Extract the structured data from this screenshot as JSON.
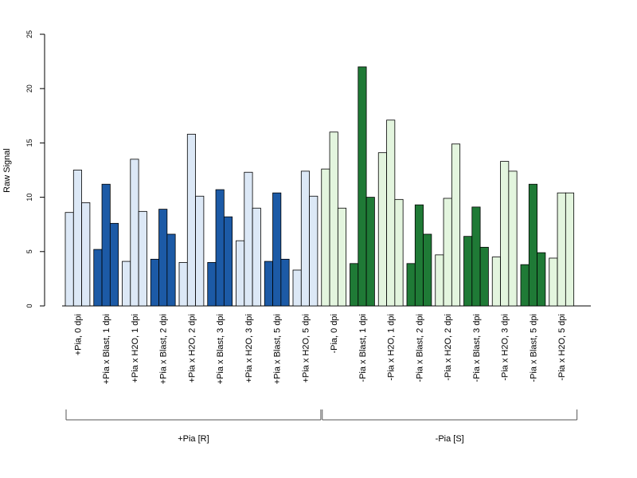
{
  "chart_data": {
    "type": "bar",
    "ylabel": "Raw Signal",
    "xlabel": "",
    "ylim": [
      0,
      25
    ],
    "yticks": [
      0,
      5,
      10,
      15,
      20,
      25
    ],
    "grid": false,
    "categories": [
      "+Pia, 0 dpi",
      "+Pia x Blast, 1 dpi",
      "+Pia x H2O, 1 dpi",
      "+Pia x Blast, 2 dpi",
      "+Pia x H2O, 2 dpi",
      "+Pia x Blast, 3 dpi",
      "+Pia x H2O, 3 dpi",
      "+Pia x Blast, 5 dpi",
      "+Pia x H2O, 5 dpi",
      "-Pia, 0 dpi",
      "-Pia x Blast, 1 dpi",
      "-Pia x H2O, 1 dpi",
      "-Pia x Blast, 2 dpi",
      "-Pia x H2O, 2 dpi",
      "-Pia x Blast, 3 dpi",
      "-Pia x H2O, 3 dpi",
      "-Pia x Blast, 5 dpi",
      "-Pia x H2O, 5 dpi"
    ],
    "replicates": [
      [
        8.6,
        12.5,
        9.5
      ],
      [
        5.2,
        11.2,
        7.6
      ],
      [
        4.1,
        13.5,
        8.7
      ],
      [
        4.3,
        8.9,
        6.6
      ],
      [
        4.0,
        15.8,
        10.1
      ],
      [
        4.0,
        10.7,
        8.2
      ],
      [
        6.0,
        12.3,
        9.0
      ],
      [
        4.1,
        10.4,
        4.3
      ],
      [
        3.3,
        12.4,
        10.1
      ],
      [
        12.6,
        16.0,
        9.0
      ],
      [
        3.9,
        22.0,
        10.0
      ],
      [
        14.1,
        17.1,
        9.8
      ],
      [
        3.9,
        9.3,
        6.6
      ],
      [
        4.7,
        9.9,
        14.9
      ],
      [
        6.4,
        9.1,
        5.4
      ],
      [
        4.5,
        13.3,
        12.4
      ],
      [
        3.8,
        11.2,
        4.9
      ],
      [
        4.4,
        10.4,
        10.4
      ]
    ],
    "bar_colors": [
      "#dce8f6",
      "#1c5aa6",
      "#dce8f6",
      "#1c5aa6",
      "#dce8f6",
      "#1c5aa6",
      "#dce8f6",
      "#1c5aa6",
      "#dce8f6",
      "#e3f5de",
      "#1f7a36",
      "#e3f5de",
      "#1f7a36",
      "#e3f5de",
      "#1f7a36",
      "#e3f5de",
      "#1f7a36",
      "#e3f5de"
    ],
    "groups": [
      {
        "label": "+Pia [R]",
        "categories": [
          0,
          8
        ]
      },
      {
        "label": "-Pia [S]",
        "categories": [
          9,
          17
        ]
      }
    ]
  }
}
